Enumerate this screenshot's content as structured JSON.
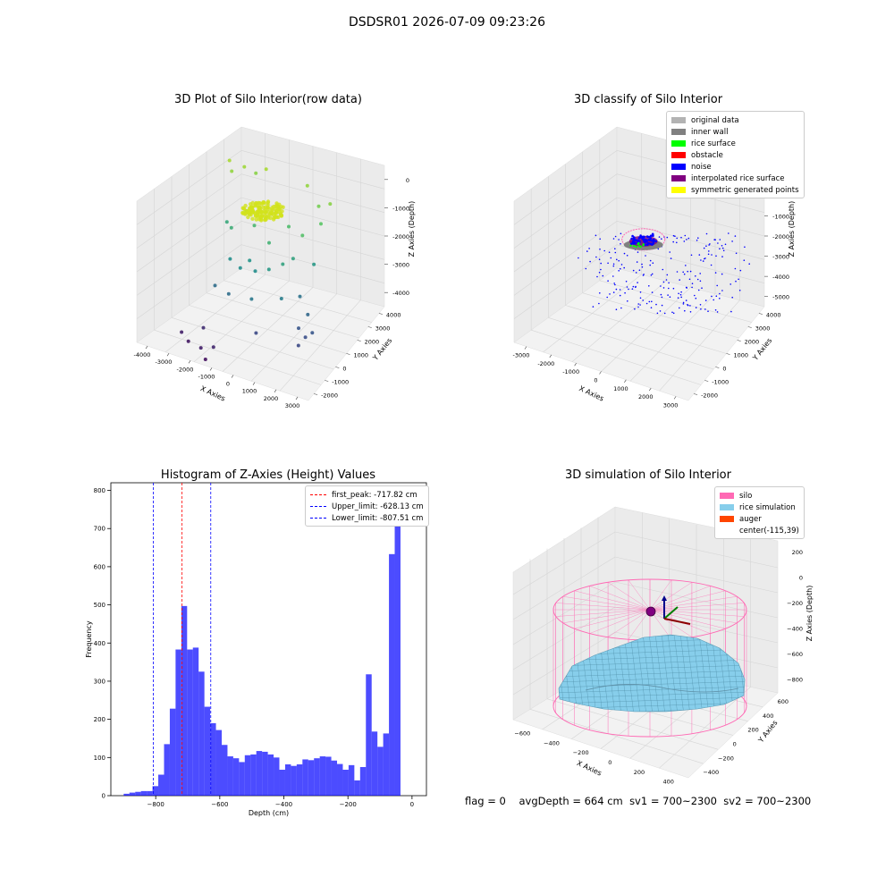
{
  "suptitle": "DSDSR01 2026-07-09 09:23:26",
  "footer": {
    "flag": "flag = 0",
    "avg_depth": "avgDepth = 664 cm",
    "sv1": "sv1 = 700~2300",
    "sv2": "sv2 = 700~2300"
  },
  "chart_data": [
    {
      "type": "scatter",
      "subtype": "3d",
      "title": "3D Plot of Silo Interior(row data)",
      "xlabel": "X Axies",
      "ylabel": "Y Axies",
      "zlabel": "Z Axies (Depth)",
      "xticks": [
        "-4000",
        "-3000",
        "-2000",
        "-1000",
        "0",
        "1000",
        "2000",
        "3000"
      ],
      "yticks": [
        "-2000",
        "-1000",
        "0",
        "1000",
        "2000",
        "3000",
        "4000"
      ],
      "zticks": [
        "0",
        "-1000",
        "-2000",
        "-3000",
        "-4000"
      ],
      "xlim": [
        -4000,
        3500
      ],
      "ylim": [
        -2000,
        4500
      ],
      "zlim": [
        -4500,
        0
      ],
      "colormap": "viridis (by depth)",
      "dense_cluster": {
        "x": 0,
        "y": 1000,
        "z": -700,
        "color": "#d2e21b"
      },
      "points": [
        {
          "x": -2300,
          "y": 2600,
          "z": -400
        },
        {
          "x": -2100,
          "y": 2400,
          "z": -600
        },
        {
          "x": -1700,
          "y": 2700,
          "z": -500
        },
        {
          "x": -1300,
          "y": 2900,
          "z": -700
        },
        {
          "x": -800,
          "y": 2800,
          "z": -400
        },
        {
          "x": 900,
          "y": 3000,
          "z": -600
        },
        {
          "x": 1600,
          "y": 2600,
          "z": -900
        },
        {
          "x": 1900,
          "y": 2200,
          "z": -1200
        },
        {
          "x": 2100,
          "y": 2600,
          "z": -700
        },
        {
          "x": 1500,
          "y": 1400,
          "z": -1300
        },
        {
          "x": 700,
          "y": 1800,
          "z": -1400
        },
        {
          "x": -600,
          "y": 1400,
          "z": -1500
        },
        {
          "x": -1500,
          "y": 1200,
          "z": -1700
        },
        {
          "x": -1900,
          "y": 1600,
          "z": -1800
        },
        {
          "x": -1100,
          "y": 1700,
          "z": -1300
        },
        {
          "x": 300,
          "y": 900,
          "z": -1600
        },
        {
          "x": 1100,
          "y": 500,
          "z": -1900
        },
        {
          "x": -400,
          "y": 600,
          "z": -2200
        },
        {
          "x": -1200,
          "y": 500,
          "z": -2300
        },
        {
          "x": -600,
          "y": 200,
          "z": -2300
        },
        {
          "x": 0,
          "y": 300,
          "z": -2300
        },
        {
          "x": 600,
          "y": 300,
          "z": -2100
        },
        {
          "x": 1300,
          "y": 1000,
          "z": -1900
        },
        {
          "x": 2000,
          "y": 1400,
          "z": -2100
        },
        {
          "x": 1400,
          "y": -200,
          "z": -2600
        },
        {
          "x": 300,
          "y": -600,
          "z": -2700
        },
        {
          "x": -800,
          "y": -400,
          "z": -2900
        },
        {
          "x": -1500,
          "y": -200,
          "z": -2900
        },
        {
          "x": 1800,
          "y": 600,
          "z": -2800
        },
        {
          "x": 2400,
          "y": 100,
          "z": -3000
        },
        {
          "x": 2200,
          "y": -300,
          "z": -3300
        },
        {
          "x": 2600,
          "y": -500,
          "z": -3400
        },
        {
          "x": 2500,
          "y": -900,
          "z": -3500
        },
        {
          "x": 2800,
          "y": -300,
          "z": -3300
        },
        {
          "x": 700,
          "y": -1000,
          "z": -3500
        },
        {
          "x": -1600,
          "y": -1000,
          "z": -3900
        },
        {
          "x": -2000,
          "y": -1500,
          "z": -4200
        },
        {
          "x": -2400,
          "y": -1300,
          "z": -4100
        },
        {
          "x": -1300,
          "y": -1800,
          "z": -4100
        },
        {
          "x": -1000,
          "y": -2000,
          "z": -4300
        },
        {
          "x": -800,
          "y": -1700,
          "z": -4000
        }
      ]
    },
    {
      "type": "scatter",
      "subtype": "3d",
      "title": "3D classify of Silo Interior",
      "xlabel": "X Axies",
      "ylabel": "Y Axies",
      "zlabel": "Z Axies (Depth)",
      "xticks": [
        "-3000",
        "-2000",
        "-1000",
        "0",
        "1000",
        "2000",
        "3000"
      ],
      "yticks": [
        "-2000",
        "-1000",
        "0",
        "1000",
        "2000",
        "3000",
        "4000"
      ],
      "zticks": [
        "1000",
        "0",
        "-1000",
        "-2000",
        "-3000",
        "-4000",
        "-5000"
      ],
      "xlim": [
        -3500,
        3500
      ],
      "ylim": [
        -2000,
        4500
      ],
      "zlim": [
        -5500,
        1000
      ],
      "legend": [
        {
          "label": "original data",
          "color": "#b3b3b3"
        },
        {
          "label": "inner wall",
          "color": "#808080"
        },
        {
          "label": "rice surface",
          "color": "#00ff00"
        },
        {
          "label": "obstacle",
          "color": "#ff0000"
        },
        {
          "label": "noise",
          "color": "#0000ff"
        },
        {
          "label": "interpolated rice surface",
          "color": "#800080"
        },
        {
          "label": "symmetric generated points",
          "color": "#ffff00"
        }
      ],
      "legend_loc": "upper right"
    },
    {
      "type": "bar",
      "subtype": "histogram",
      "title": "Histogram of Z-Axies (Height) Values",
      "xlabel": "Depth (cm)",
      "ylabel": "Frequency",
      "xlim": [
        -940,
        45
      ],
      "ylim": [
        0,
        820
      ],
      "xticks": [
        -800,
        -600,
        -400,
        -200,
        0
      ],
      "yticks": [
        0,
        100,
        200,
        300,
        400,
        500,
        600,
        700,
        800
      ],
      "bar_color": "#0000ff",
      "bin_start": -900,
      "bin_width": 18,
      "values": [
        5,
        8,
        10,
        12,
        12,
        25,
        55,
        135,
        228,
        383,
        497,
        383,
        388,
        325,
        233,
        190,
        172,
        133,
        103,
        98,
        88,
        106,
        108,
        117,
        115,
        108,
        100,
        68,
        82,
        78,
        82,
        95,
        93,
        98,
        103,
        102,
        92,
        83,
        68,
        80,
        40,
        75,
        318,
        168,
        128,
        163,
        633,
        775
      ],
      "vlines": [
        {
          "label": "first_peak: -717.82 cm",
          "x": -717.82,
          "color": "#ff0000"
        },
        {
          "label": "Upper_limit: -628.13 cm",
          "x": -628.13,
          "color": "#0000ff"
        },
        {
          "label": "Lower_limit: -807.51 cm",
          "x": -807.51,
          "color": "#0000ff"
        }
      ],
      "legend_loc": "upper right"
    },
    {
      "type": "area",
      "subtype": "3d surface",
      "title": "3D simulation of Silo Interior",
      "xlabel": "X Axies",
      "ylabel": "Y Axies",
      "zlabel": "Z Axies (Depth)",
      "xticks": [
        "-600",
        "-400",
        "-200",
        "0",
        "200",
        "400"
      ],
      "yticks": [
        "-400",
        "-200",
        "0",
        "200",
        "400",
        "600"
      ],
      "zticks": [
        "200",
        "0",
        "-200",
        "-400",
        "-600",
        "-800"
      ],
      "legend": [
        {
          "label": "silo",
          "color": "#ff69b4"
        },
        {
          "label": "rice simulation",
          "color": "#87ceeb"
        },
        {
          "label": "auger",
          "color": "#ff4500"
        },
        {
          "label": "center(-115,39)",
          "color": ""
        }
      ],
      "legend_loc": "upper right"
    }
  ]
}
